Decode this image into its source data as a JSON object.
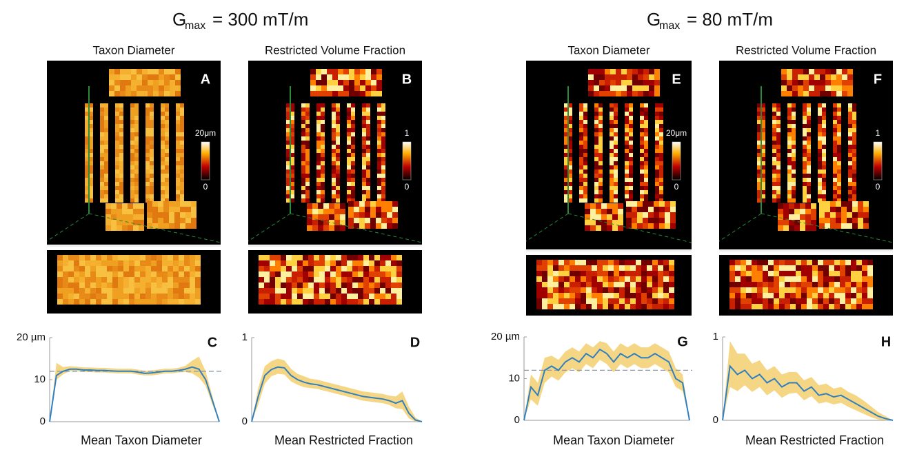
{
  "headings": [
    {
      "symbol": "G",
      "sub": "max",
      "rest": "= 300 mT/m"
    },
    {
      "symbol": "G",
      "sub": "max",
      "rest": "= 80 mT/m"
    }
  ],
  "panels": [
    {
      "title": "Taxon Diameter",
      "label": "A",
      "colorbar": [
        "20μm",
        "0"
      ]
    },
    {
      "title": "Restricted Volume Fraction",
      "label": "B",
      "colorbar": [
        "1",
        "0"
      ]
    },
    {
      "title": "Taxon Diameter",
      "label": "E",
      "colorbar": [
        "20μm",
        "0"
      ]
    },
    {
      "title": "Restricted Volume Fraction",
      "label": "F",
      "colorbar": [
        "1",
        "0"
      ]
    }
  ],
  "chart_data": [
    {
      "type": "line",
      "label": "C",
      "xlabel": "Mean Taxon Diameter",
      "ylim": [
        0,
        20
      ],
      "yticks": [
        0,
        10,
        {
          "value": 20,
          "label": "20 µm"
        }
      ],
      "reference_line": 12,
      "series": [
        {
          "color": "#2f7fc1",
          "band_color": "#f3cf6f",
          "values": [
            0,
            11,
            12,
            12.5,
            12.5,
            12.3,
            12.3,
            12.2,
            12.2,
            12.1,
            12,
            12,
            12,
            11.8,
            11.5,
            11.6,
            11.8,
            12,
            12,
            12.2,
            12.5,
            13,
            12.5,
            10,
            5,
            0
          ],
          "lower": [
            0,
            10,
            11.3,
            12,
            12,
            11.8,
            11.8,
            11.7,
            11.7,
            11.6,
            11.5,
            11.5,
            11.5,
            11.2,
            11,
            11,
            11.2,
            11.5,
            11.5,
            11.7,
            11.8,
            11.5,
            10.5,
            8.5,
            4,
            0
          ],
          "upper": [
            0,
            14,
            13,
            13.2,
            13.1,
            12.9,
            12.9,
            12.8,
            12.8,
            12.7,
            12.6,
            12.6,
            12.6,
            12.4,
            12.1,
            12.2,
            12.4,
            12.6,
            12.6,
            12.8,
            13.3,
            14.5,
            15.5,
            12,
            6,
            0
          ]
        }
      ]
    },
    {
      "type": "line",
      "label": "D",
      "xlabel": "Mean Restricted Fraction",
      "ylim": [
        0,
        1
      ],
      "yticks": [
        0,
        1
      ],
      "series": [
        {
          "color": "#2f7fc1",
          "band_color": "#f3cf6f",
          "values": [
            0,
            0.3,
            0.55,
            0.62,
            0.65,
            0.64,
            0.55,
            0.5,
            0.47,
            0.45,
            0.44,
            0.42,
            0.4,
            0.38,
            0.36,
            0.34,
            0.32,
            0.3,
            0.29,
            0.28,
            0.27,
            0.25,
            0.22,
            0.25,
            0.1,
            0.02,
            0
          ],
          "lower": [
            0,
            0.2,
            0.45,
            0.54,
            0.57,
            0.56,
            0.48,
            0.44,
            0.41,
            0.4,
            0.39,
            0.37,
            0.35,
            0.33,
            0.31,
            0.29,
            0.27,
            0.25,
            0.24,
            0.23,
            0.22,
            0.2,
            0.16,
            0.15,
            0.04,
            0,
            0
          ],
          "upper": [
            0,
            0.4,
            0.66,
            0.72,
            0.75,
            0.73,
            0.63,
            0.57,
            0.54,
            0.51,
            0.5,
            0.48,
            0.46,
            0.44,
            0.42,
            0.4,
            0.38,
            0.36,
            0.35,
            0.34,
            0.33,
            0.31,
            0.3,
            0.36,
            0.18,
            0.05,
            0
          ]
        }
      ]
    },
    {
      "type": "line",
      "label": "G",
      "xlabel": "Mean Taxon Diameter",
      "ylim": [
        0,
        20
      ],
      "yticks": [
        0,
        10,
        {
          "value": 20,
          "label": "20 µm"
        }
      ],
      "reference_line": 12,
      "series": [
        {
          "color": "#2f7fc1",
          "band_color": "#f3cf6f",
          "values": [
            0,
            8,
            6,
            12,
            13,
            12,
            14,
            15,
            14,
            16,
            15,
            17,
            16,
            14,
            16,
            15,
            16,
            15,
            15,
            16,
            15,
            14,
            10,
            9,
            0
          ],
          "lower": [
            0,
            5,
            3.5,
            9,
            10.5,
            9.5,
            11.5,
            12.5,
            11.5,
            13.5,
            12.5,
            14.5,
            13.5,
            11.5,
            13.5,
            12.5,
            13.5,
            12.5,
            12.5,
            13.5,
            12.5,
            11.5,
            8,
            7,
            0
          ],
          "upper": [
            0,
            11,
            9,
            15,
            15.5,
            14.5,
            16.5,
            17.5,
            16.5,
            18.5,
            17.5,
            19,
            18.5,
            16.5,
            18.5,
            17.5,
            18.5,
            17.5,
            17.5,
            18.5,
            17.5,
            16.5,
            12.5,
            11,
            0
          ]
        }
      ]
    },
    {
      "type": "line",
      "label": "H",
      "xlabel": "Mean Restricted Fraction",
      "ylim": [
        0,
        1
      ],
      "yticks": [
        0,
        1
      ],
      "series": [
        {
          "color": "#2f7fc1",
          "band_color": "#f3cf6f",
          "values": [
            0,
            0.65,
            0.55,
            0.6,
            0.5,
            0.55,
            0.45,
            0.5,
            0.4,
            0.45,
            0.45,
            0.35,
            0.4,
            0.3,
            0.32,
            0.28,
            0.3,
            0.25,
            0.2,
            0.15,
            0.1,
            0.05,
            0.02,
            0
          ],
          "lower": [
            0,
            0.4,
            0.35,
            0.42,
            0.34,
            0.4,
            0.3,
            0.36,
            0.27,
            0.32,
            0.33,
            0.24,
            0.29,
            0.2,
            0.22,
            0.19,
            0.21,
            0.16,
            0.12,
            0.08,
            0.04,
            0.01,
            0,
            0
          ],
          "upper": [
            0,
            0.95,
            0.8,
            0.8,
            0.68,
            0.72,
            0.6,
            0.65,
            0.55,
            0.58,
            0.58,
            0.48,
            0.52,
            0.42,
            0.44,
            0.38,
            0.4,
            0.34,
            0.3,
            0.24,
            0.17,
            0.1,
            0.05,
            0
          ]
        }
      ]
    }
  ]
}
